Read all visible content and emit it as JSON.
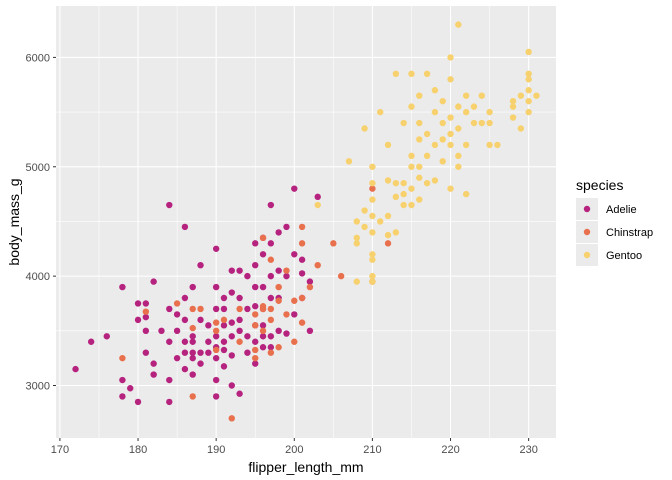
{
  "chart_data": {
    "type": "scatter",
    "xlabel": "flipper_length_mm",
    "ylabel": "body_mass_g",
    "xlim": [
      169.5,
      233.5
    ],
    "ylim": [
      2520,
      6470
    ],
    "x_ticks": [
      170,
      180,
      190,
      200,
      210,
      220,
      230
    ],
    "y_ticks": [
      3000,
      4000,
      5000,
      6000
    ],
    "grid": true,
    "legend": {
      "title": "species",
      "position": "right"
    },
    "colors": {
      "Adelie": "#b5237f",
      "Chinstrap": "#e8704d",
      "Gentoo": "#f7d16e",
      "panel": "#ebebeb",
      "grid": "#ffffff"
    },
    "series": [
      {
        "name": "Adelie",
        "points": [
          [
            172,
            3150
          ],
          [
            174,
            3400
          ],
          [
            176,
            3450
          ],
          [
            178,
            3900
          ],
          [
            178,
            3050
          ],
          [
            179,
            2975
          ],
          [
            178,
            2900
          ],
          [
            180,
            3750
          ],
          [
            180,
            3600
          ],
          [
            180,
            2850
          ],
          [
            181,
            3750
          ],
          [
            181,
            3625
          ],
          [
            181,
            3500
          ],
          [
            181,
            3300
          ],
          [
            182,
            3950
          ],
          [
            182,
            3200
          ],
          [
            182,
            3100
          ],
          [
            183,
            3500
          ],
          [
            184,
            4650
          ],
          [
            184,
            3700
          ],
          [
            184,
            3400
          ],
          [
            184,
            3050
          ],
          [
            184,
            2850
          ],
          [
            185,
            3650
          ],
          [
            185,
            3500
          ],
          [
            185,
            3250
          ],
          [
            186,
            4450
          ],
          [
            186,
            3800
          ],
          [
            186,
            3600
          ],
          [
            186,
            3400
          ],
          [
            186,
            3300
          ],
          [
            186,
            3150
          ],
          [
            187,
            3900
          ],
          [
            187,
            3450
          ],
          [
            187,
            3400
          ],
          [
            187,
            3300
          ],
          [
            187,
            3250
          ],
          [
            187,
            3100
          ],
          [
            188,
            4100
          ],
          [
            188,
            3600
          ],
          [
            188,
            3300
          ],
          [
            188,
            3200
          ],
          [
            189,
            3550
          ],
          [
            189,
            3400
          ],
          [
            189,
            3300
          ],
          [
            190,
            4250
          ],
          [
            190,
            3900
          ],
          [
            190,
            3700
          ],
          [
            190,
            3450
          ],
          [
            190,
            3350
          ],
          [
            190,
            3250
          ],
          [
            190,
            3050
          ],
          [
            190,
            2900
          ],
          [
            191,
            3800
          ],
          [
            191,
            3700
          ],
          [
            191,
            3550
          ],
          [
            191,
            3400
          ],
          [
            191,
            3325
          ],
          [
            191,
            3175
          ],
          [
            192,
            4050
          ],
          [
            192,
            3850
          ],
          [
            192,
            3575
          ],
          [
            192,
            3450
          ],
          [
            192,
            3275
          ],
          [
            192,
            3000
          ],
          [
            193,
            4050
          ],
          [
            193,
            3800
          ],
          [
            193,
            3600
          ],
          [
            193,
            3500
          ],
          [
            193,
            2925
          ],
          [
            194,
            4000
          ],
          [
            194,
            3700
          ],
          [
            194,
            3450
          ],
          [
            194,
            3300
          ],
          [
            195,
            4300
          ],
          [
            195,
            4100
          ],
          [
            195,
            3900
          ],
          [
            195,
            3725
          ],
          [
            195,
            3550
          ],
          [
            195,
            3400
          ],
          [
            195,
            3200
          ],
          [
            196,
            4350
          ],
          [
            196,
            4200
          ],
          [
            196,
            3900
          ],
          [
            196,
            3700
          ],
          [
            196,
            3550
          ],
          [
            196,
            3450
          ],
          [
            196,
            3350
          ],
          [
            197,
            4650
          ],
          [
            197,
            4300
          ],
          [
            197,
            4000
          ],
          [
            197,
            3800
          ],
          [
            197,
            3450
          ],
          [
            197,
            3350
          ],
          [
            198,
            4400
          ],
          [
            198,
            4050
          ],
          [
            198,
            3800
          ],
          [
            198,
            3500
          ],
          [
            199,
            4450
          ],
          [
            199,
            4000
          ],
          [
            199,
            3475
          ],
          [
            200,
            4800
          ],
          [
            200,
            4200
          ],
          [
            200,
            3650
          ],
          [
            201,
            4150
          ],
          [
            201,
            4025
          ],
          [
            201,
            3800
          ],
          [
            202,
            3950
          ],
          [
            202,
            3500
          ],
          [
            203,
            4725
          ]
        ]
      },
      {
        "name": "Chinstrap",
        "points": [
          [
            178,
            3250
          ],
          [
            181,
            3675
          ],
          [
            185,
            3750
          ],
          [
            187,
            3525
          ],
          [
            187,
            3700
          ],
          [
            187,
            2900
          ],
          [
            188,
            3700
          ],
          [
            190,
            3325
          ],
          [
            190,
            3500
          ],
          [
            190,
            3575
          ],
          [
            191,
            3600
          ],
          [
            192,
            2700
          ],
          [
            193,
            3400
          ],
          [
            193,
            3700
          ],
          [
            195,
            3650
          ],
          [
            195,
            3325
          ],
          [
            195,
            3550
          ],
          [
            195,
            3250
          ],
          [
            196,
            3500
          ],
          [
            196,
            3700
          ],
          [
            196,
            3725
          ],
          [
            196,
            4350
          ],
          [
            197,
            3300
          ],
          [
            197,
            3600
          ],
          [
            197,
            4150
          ],
          [
            197,
            3700
          ],
          [
            198,
            3350
          ],
          [
            198,
            3900
          ],
          [
            198,
            3775
          ],
          [
            199,
            4050
          ],
          [
            199,
            3650
          ],
          [
            200,
            3400
          ],
          [
            200,
            3775
          ],
          [
            201,
            3575
          ],
          [
            201,
            4300
          ],
          [
            201,
            4450
          ],
          [
            201,
            3800
          ],
          [
            202,
            3900
          ],
          [
            203,
            4100
          ],
          [
            205,
            4300
          ],
          [
            206,
            4000
          ],
          [
            210,
            3950
          ],
          [
            210,
            4800
          ],
          [
            212,
            4300
          ]
        ]
      },
      {
        "name": "Gentoo",
        "points": [
          [
            203,
            4650
          ],
          [
            207,
            5050
          ],
          [
            208,
            3950
          ],
          [
            208,
            4300
          ],
          [
            208,
            4350
          ],
          [
            208,
            4500
          ],
          [
            209,
            4450
          ],
          [
            209,
            4600
          ],
          [
            209,
            5350
          ],
          [
            210,
            4200
          ],
          [
            210,
            4400
          ],
          [
            210,
            4550
          ],
          [
            210,
            4700
          ],
          [
            210,
            4850
          ],
          [
            210,
            5000
          ],
          [
            210,
            4000
          ],
          [
            210,
            4150
          ],
          [
            210,
            3950
          ],
          [
            211,
            4500
          ],
          [
            211,
            5500
          ],
          [
            212,
            4375
          ],
          [
            212,
            4550
          ],
          [
            212,
            4875
          ],
          [
            212,
            5200
          ],
          [
            213,
            4400
          ],
          [
            213,
            4725
          ],
          [
            213,
            4850
          ],
          [
            213,
            5850
          ],
          [
            214,
            4750
          ],
          [
            214,
            4850
          ],
          [
            214,
            5400
          ],
          [
            214,
            4650
          ],
          [
            215,
            4650
          ],
          [
            215,
            4800
          ],
          [
            215,
            5000
          ],
          [
            215,
            5100
          ],
          [
            215,
            5550
          ],
          [
            215,
            5850
          ],
          [
            216,
            4700
          ],
          [
            216,
            4900
          ],
          [
            216,
            5000
          ],
          [
            216,
            5250
          ],
          [
            216,
            5400
          ],
          [
            216,
            5650
          ],
          [
            217,
            4850
          ],
          [
            217,
            5100
          ],
          [
            217,
            5300
          ],
          [
            217,
            5850
          ],
          [
            218,
            4875
          ],
          [
            218,
            5200
          ],
          [
            218,
            5500
          ],
          [
            218,
            5700
          ],
          [
            219,
            5050
          ],
          [
            219,
            5250
          ],
          [
            219,
            5400
          ],
          [
            219,
            5600
          ],
          [
            220,
            4800
          ],
          [
            220,
            5200
          ],
          [
            220,
            5300
          ],
          [
            220,
            5450
          ],
          [
            220,
            5800
          ],
          [
            220,
            6000
          ],
          [
            221,
            5000
          ],
          [
            221,
            5100
          ],
          [
            221,
            5350
          ],
          [
            221,
            5550
          ],
          [
            221,
            6300
          ],
          [
            222,
            4750
          ],
          [
            222,
            5200
          ],
          [
            222,
            5500
          ],
          [
            222,
            5650
          ],
          [
            223,
            5400
          ],
          [
            223,
            5550
          ],
          [
            224,
            5400
          ],
          [
            224,
            5650
          ],
          [
            225,
            5200
          ],
          [
            225,
            5400
          ],
          [
            225,
            5500
          ],
          [
            226,
            5200
          ],
          [
            228,
            5450
          ],
          [
            228,
            5550
          ],
          [
            228,
            5600
          ],
          [
            229,
            5350
          ],
          [
            229,
            5650
          ],
          [
            230,
            5500
          ],
          [
            230,
            5600
          ],
          [
            230,
            5700
          ],
          [
            230,
            5800
          ],
          [
            230,
            5850
          ],
          [
            230,
            6050
          ],
          [
            231,
            5650
          ]
        ]
      }
    ]
  }
}
